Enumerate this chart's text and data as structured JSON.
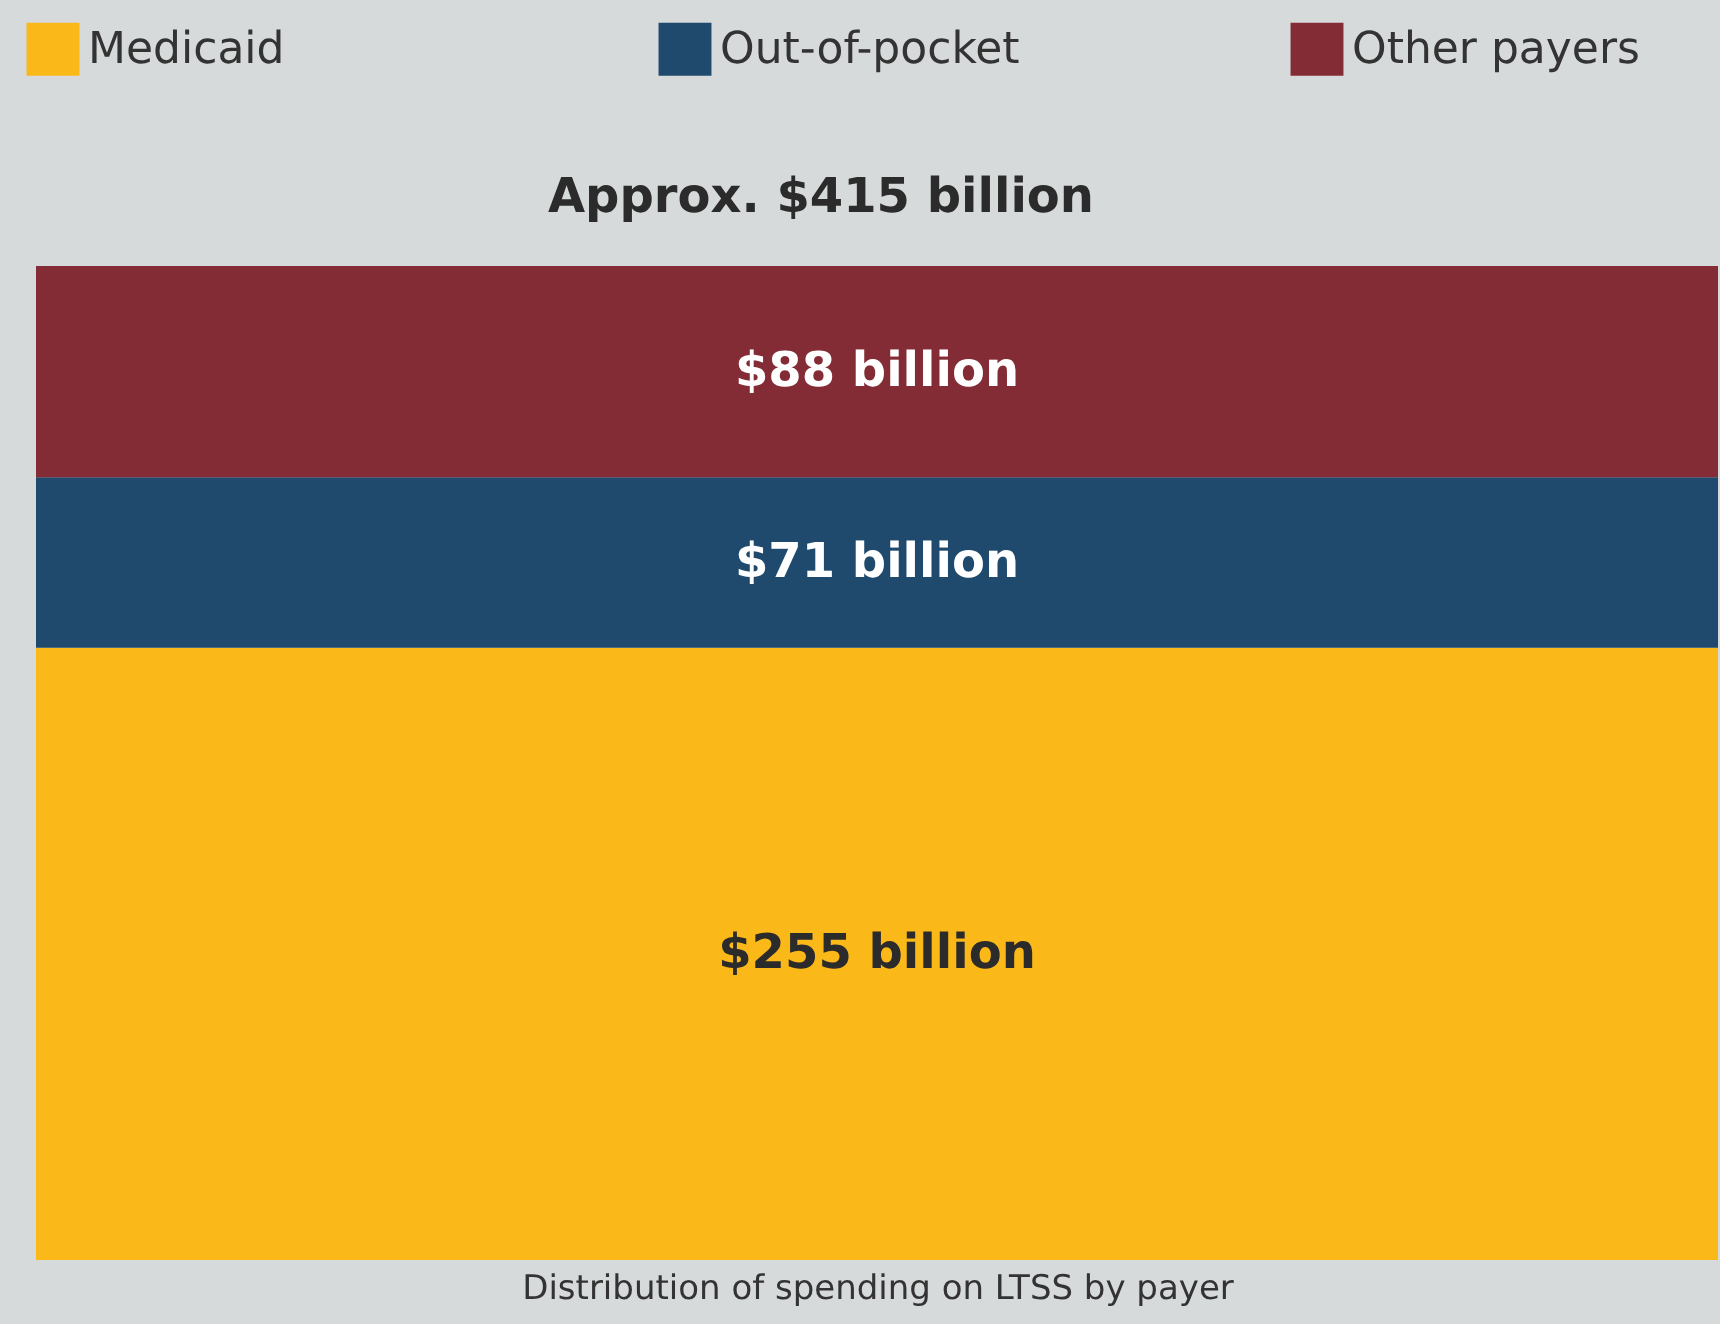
{
  "chart_data": {
    "type": "bar",
    "stacked": true,
    "categories": [
      null
    ],
    "xlabel": "Distribution of spending on LTSS by payer",
    "series": [
      {
        "name": "Medicaid",
        "color": "#fbb819",
        "values": [
          255
        ],
        "value_labels": [
          "$255 billion"
        ]
      },
      {
        "name": "Out-of-pocket",
        "color": "#1f4a6e",
        "values": [
          71
        ],
        "value_labels": [
          "$71 billion"
        ]
      },
      {
        "name": "Other payers",
        "color": "#832c35",
        "values": [
          88
        ],
        "value_labels": [
          "$88 billion"
        ]
      }
    ],
    "totals": [
      "Approx. $415 billion"
    ],
    "legend": "top",
    "tick_labels": false
  }
}
